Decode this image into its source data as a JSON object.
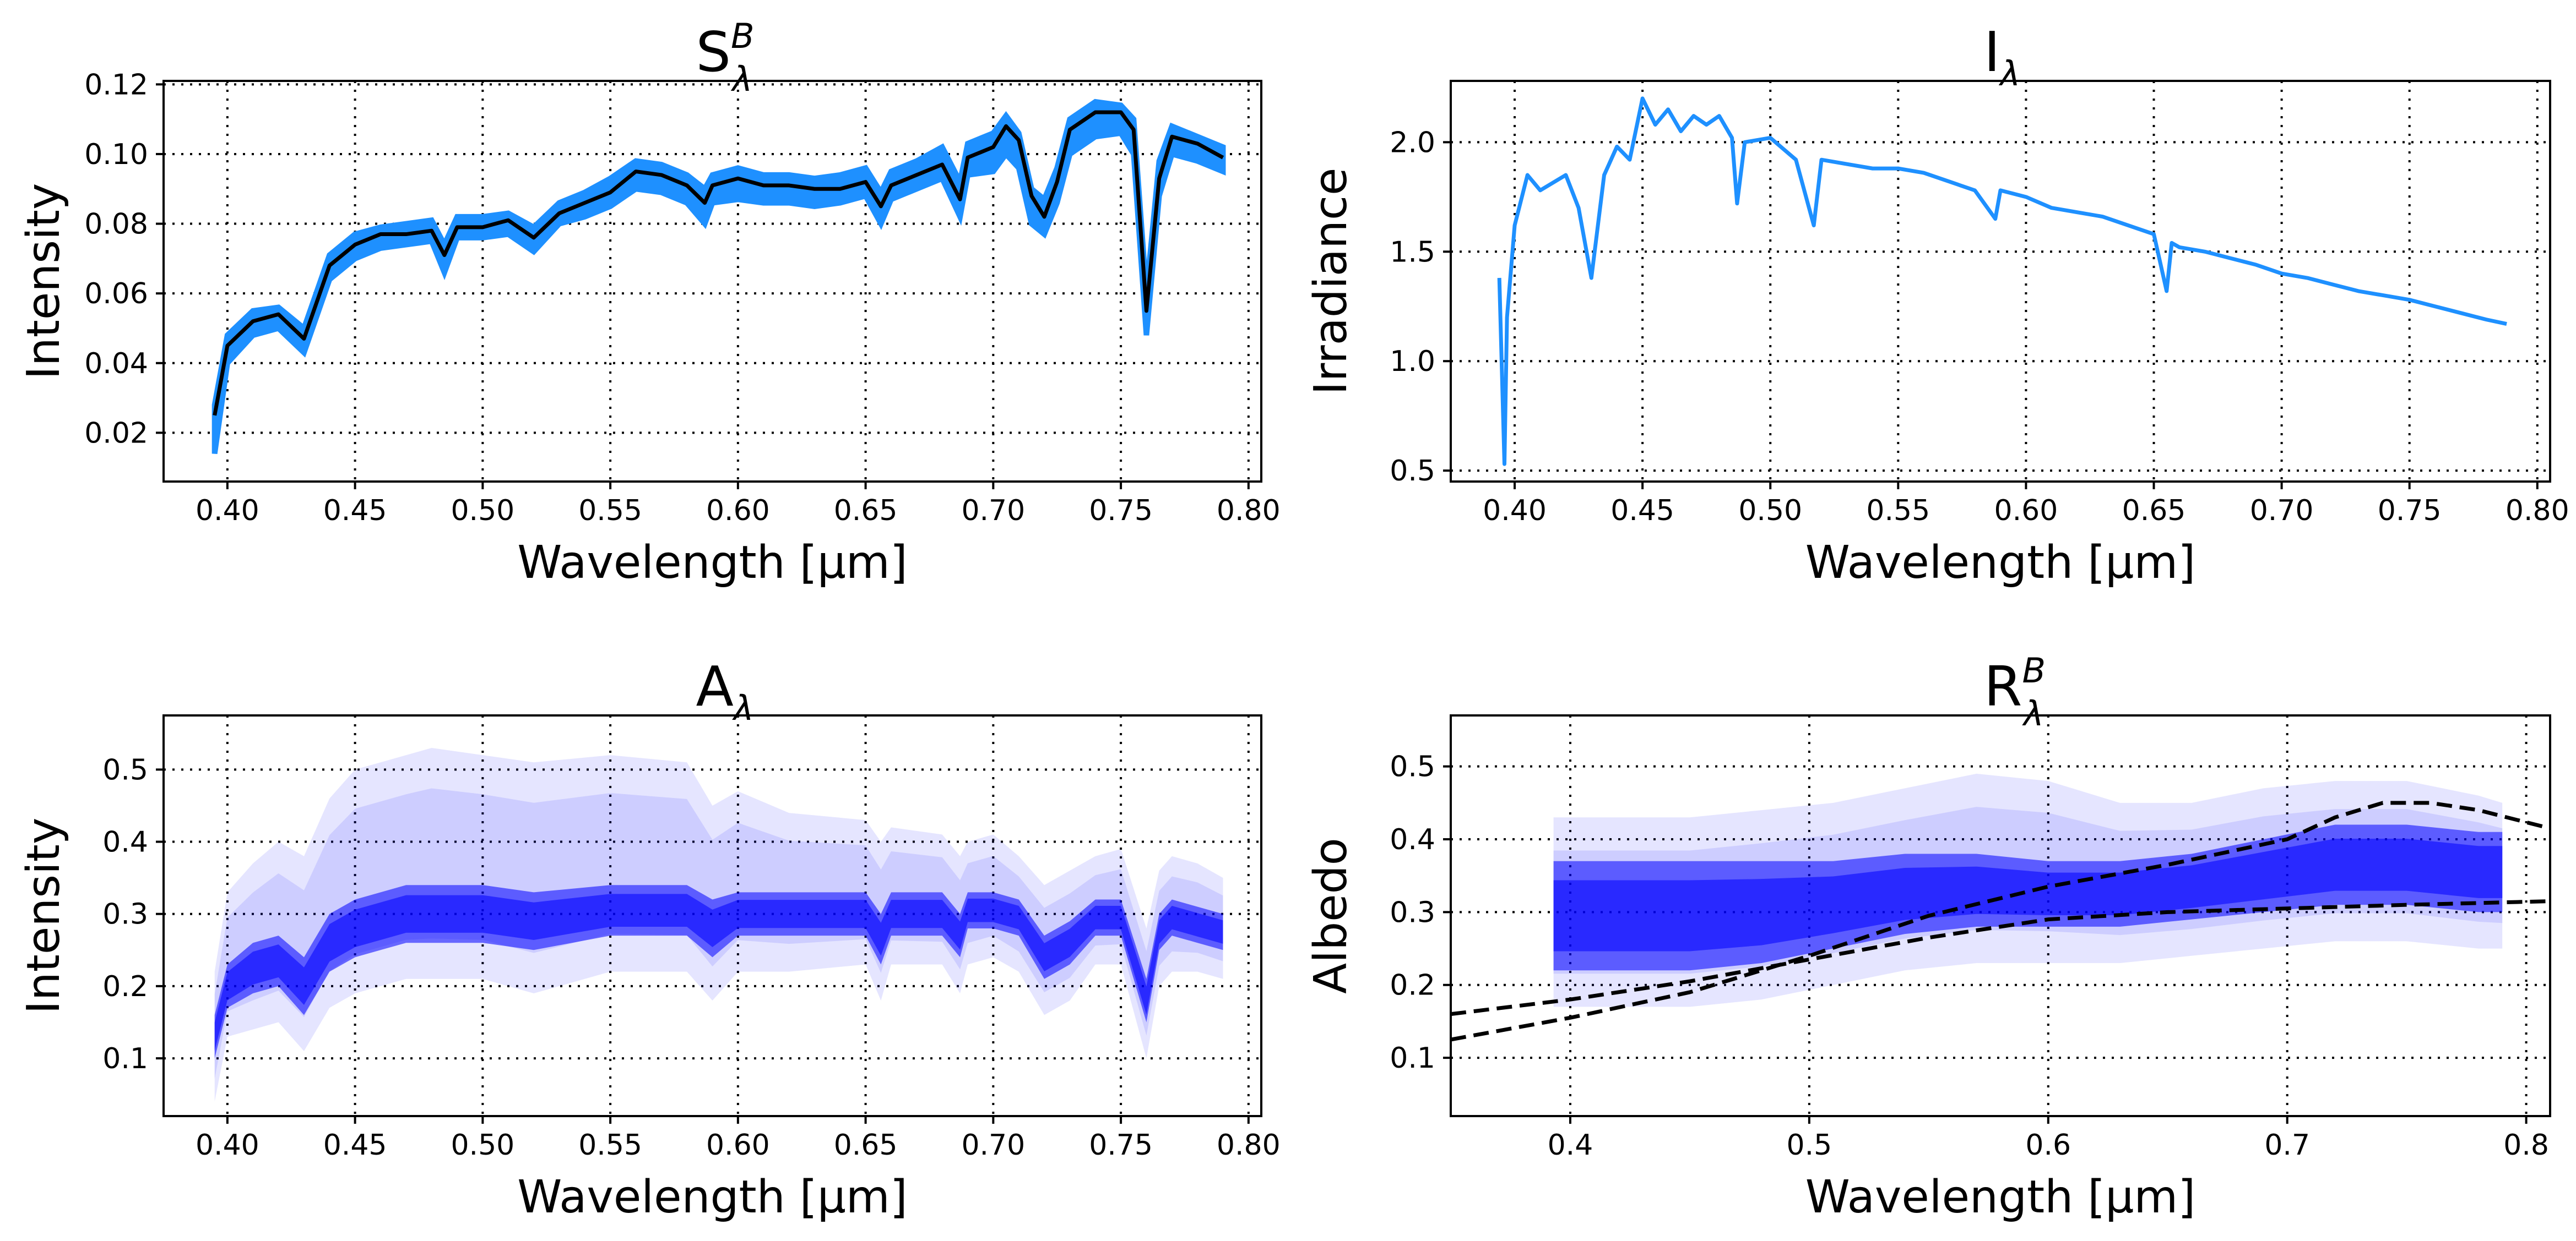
{
  "chart_data": [
    {
      "panel": "top-left",
      "type": "line",
      "title": "S",
      "title_superscript": "B",
      "title_subscript": "λ",
      "xlabel": "Wavelength [μm]",
      "ylabel": "Intensity",
      "xlim": [
        0.375,
        0.805
      ],
      "ylim": [
        0.006,
        0.121
      ],
      "xticks": [
        0.4,
        0.45,
        0.5,
        0.55,
        0.6,
        0.65,
        0.7,
        0.75,
        0.8
      ],
      "xtick_labels": [
        "0.40",
        "0.45",
        "0.50",
        "0.55",
        "0.60",
        "0.65",
        "0.70",
        "0.75",
        "0.80"
      ],
      "yticks": [
        0.02,
        0.04,
        0.06,
        0.08,
        0.1,
        0.12
      ],
      "ytick_labels": [
        "0.02",
        "0.04",
        "0.06",
        "0.08",
        "0.10",
        "0.12"
      ],
      "grid": "dotted",
      "colors": {
        "band": "#1e90ff",
        "line": "#000000"
      },
      "series": [
        {
          "style": "band",
          "x": [
            0.395,
            0.4,
            0.41,
            0.42,
            0.43,
            0.44,
            0.45,
            0.46,
            0.47,
            0.48,
            0.485,
            0.49,
            0.5,
            0.51,
            0.52,
            0.53,
            0.54,
            0.55,
            0.56,
            0.57,
            0.58,
            0.587,
            0.59,
            0.6,
            0.61,
            0.62,
            0.63,
            0.64,
            0.65,
            0.656,
            0.66,
            0.67,
            0.68,
            0.687,
            0.69,
            0.7,
            0.705,
            0.71,
            0.715,
            0.72,
            0.725,
            0.73,
            0.74,
            0.75,
            0.755,
            0.76,
            0.765,
            0.77,
            0.78,
            0.79
          ],
          "y_low": [
            0.014,
            0.04,
            0.048,
            0.05,
            0.043,
            0.064,
            0.07,
            0.073,
            0.074,
            0.075,
            0.066,
            0.076,
            0.076,
            0.077,
            0.072,
            0.08,
            0.082,
            0.085,
            0.09,
            0.089,
            0.086,
            0.08,
            0.086,
            0.087,
            0.086,
            0.086,
            0.085,
            0.086,
            0.088,
            0.08,
            0.087,
            0.09,
            0.093,
            0.082,
            0.094,
            0.095,
            0.1,
            0.096,
            0.08,
            0.077,
            0.086,
            0.1,
            0.105,
            0.106,
            0.1,
            0.048,
            0.088,
            0.1,
            0.098,
            0.095
          ],
          "y_high": [
            0.028,
            0.048,
            0.055,
            0.056,
            0.05,
            0.071,
            0.077,
            0.079,
            0.08,
            0.081,
            0.074,
            0.082,
            0.082,
            0.083,
            0.079,
            0.086,
            0.089,
            0.093,
            0.098,
            0.097,
            0.094,
            0.09,
            0.094,
            0.096,
            0.094,
            0.094,
            0.093,
            0.094,
            0.096,
            0.089,
            0.095,
            0.098,
            0.102,
            0.092,
            0.103,
            0.106,
            0.111,
            0.106,
            0.09,
            0.087,
            0.096,
            0.11,
            0.115,
            0.114,
            0.11,
            0.06,
            0.098,
            0.108,
            0.105,
            0.102
          ]
        },
        {
          "style": "line",
          "x": [
            0.395,
            0.4,
            0.41,
            0.42,
            0.43,
            0.44,
            0.45,
            0.46,
            0.47,
            0.48,
            0.485,
            0.49,
            0.5,
            0.51,
            0.52,
            0.53,
            0.54,
            0.55,
            0.56,
            0.57,
            0.58,
            0.587,
            0.59,
            0.6,
            0.61,
            0.62,
            0.63,
            0.64,
            0.65,
            0.656,
            0.66,
            0.67,
            0.68,
            0.687,
            0.69,
            0.7,
            0.705,
            0.71,
            0.715,
            0.72,
            0.725,
            0.73,
            0.74,
            0.75,
            0.755,
            0.76,
            0.765,
            0.77,
            0.78,
            0.79
          ],
          "y": [
            0.025,
            0.045,
            0.052,
            0.054,
            0.047,
            0.068,
            0.074,
            0.077,
            0.077,
            0.078,
            0.071,
            0.079,
            0.079,
            0.081,
            0.076,
            0.083,
            0.086,
            0.089,
            0.095,
            0.094,
            0.091,
            0.086,
            0.091,
            0.093,
            0.091,
            0.091,
            0.09,
            0.09,
            0.092,
            0.085,
            0.091,
            0.094,
            0.097,
            0.087,
            0.099,
            0.102,
            0.108,
            0.104,
            0.088,
            0.082,
            0.092,
            0.107,
            0.112,
            0.112,
            0.107,
            0.055,
            0.093,
            0.105,
            0.103,
            0.099
          ]
        }
      ]
    },
    {
      "panel": "top-right",
      "type": "line",
      "title": "I",
      "title_subscript": "λ",
      "xlabel": "Wavelength [μm]",
      "ylabel": "Irradiance",
      "xlim": [
        0.375,
        0.805
      ],
      "ylim": [
        0.45,
        2.28
      ],
      "xticks": [
        0.4,
        0.45,
        0.5,
        0.55,
        0.6,
        0.65,
        0.7,
        0.75,
        0.8
      ],
      "xtick_labels": [
        "0.40",
        "0.45",
        "0.50",
        "0.55",
        "0.60",
        "0.65",
        "0.70",
        "0.75",
        "0.80"
      ],
      "yticks": [
        0.5,
        1.0,
        1.5,
        2.0
      ],
      "ytick_labels": [
        "0.5",
        "1.0",
        "1.5",
        "2.0"
      ],
      "grid": "dotted",
      "colors": {
        "line": "#1e90ff"
      },
      "series": [
        {
          "style": "line",
          "x": [
            0.394,
            0.396,
            0.397,
            0.4,
            0.405,
            0.41,
            0.42,
            0.425,
            0.43,
            0.435,
            0.44,
            0.445,
            0.45,
            0.455,
            0.46,
            0.465,
            0.47,
            0.475,
            0.48,
            0.485,
            0.487,
            0.49,
            0.5,
            0.51,
            0.517,
            0.52,
            0.53,
            0.54,
            0.55,
            0.56,
            0.57,
            0.58,
            0.588,
            0.59,
            0.6,
            0.61,
            0.62,
            0.63,
            0.64,
            0.65,
            0.655,
            0.657,
            0.66,
            0.67,
            0.68,
            0.69,
            0.7,
            0.71,
            0.72,
            0.73,
            0.74,
            0.75,
            0.76,
            0.77,
            0.78,
            0.788
          ],
          "y": [
            1.38,
            0.53,
            1.2,
            1.62,
            1.85,
            1.78,
            1.85,
            1.7,
            1.38,
            1.85,
            1.98,
            1.92,
            2.2,
            2.08,
            2.15,
            2.05,
            2.12,
            2.08,
            2.12,
            2.02,
            1.72,
            2.0,
            2.02,
            1.92,
            1.62,
            1.92,
            1.9,
            1.88,
            1.88,
            1.86,
            1.82,
            1.78,
            1.65,
            1.78,
            1.75,
            1.7,
            1.68,
            1.66,
            1.62,
            1.58,
            1.32,
            1.54,
            1.52,
            1.5,
            1.47,
            1.44,
            1.4,
            1.38,
            1.35,
            1.32,
            1.3,
            1.28,
            1.25,
            1.22,
            1.19,
            1.17
          ]
        }
      ]
    },
    {
      "panel": "bottom-left",
      "type": "area",
      "title": "A",
      "title_subscript": "λ",
      "xlabel": "Wavelength [μm]",
      "ylabel": "Intensity",
      "xlim": [
        0.375,
        0.805
      ],
      "ylim": [
        0.02,
        0.575
      ],
      "xticks": [
        0.4,
        0.45,
        0.5,
        0.55,
        0.6,
        0.65,
        0.7,
        0.75,
        0.8
      ],
      "xtick_labels": [
        "0.40",
        "0.45",
        "0.50",
        "0.55",
        "0.60",
        "0.65",
        "0.70",
        "0.75",
        "0.80"
      ],
      "yticks": [
        0.1,
        0.2,
        0.3,
        0.4,
        0.5
      ],
      "ytick_labels": [
        "0.1",
        "0.2",
        "0.3",
        "0.4",
        "0.5"
      ],
      "grid": "dotted",
      "colors": {
        "band": "#0000ff"
      },
      "series": [
        {
          "style": "band-ensemble",
          "x": [
            0.395,
            0.4,
            0.41,
            0.42,
            0.43,
            0.44,
            0.45,
            0.46,
            0.47,
            0.48,
            0.5,
            0.52,
            0.55,
            0.58,
            0.59,
            0.6,
            0.62,
            0.65,
            0.656,
            0.66,
            0.68,
            0.687,
            0.69,
            0.7,
            0.71,
            0.72,
            0.73,
            0.74,
            0.75,
            0.76,
            0.765,
            0.77,
            0.78,
            0.79
          ],
          "y_low": [
            0.04,
            0.13,
            0.14,
            0.15,
            0.11,
            0.17,
            0.19,
            0.2,
            0.21,
            0.21,
            0.21,
            0.19,
            0.22,
            0.22,
            0.18,
            0.22,
            0.22,
            0.23,
            0.18,
            0.23,
            0.23,
            0.19,
            0.23,
            0.24,
            0.22,
            0.16,
            0.18,
            0.23,
            0.23,
            0.1,
            0.2,
            0.22,
            0.22,
            0.21
          ],
          "y_core_low": [
            0.1,
            0.17,
            0.19,
            0.2,
            0.16,
            0.22,
            0.24,
            0.25,
            0.26,
            0.26,
            0.26,
            0.25,
            0.27,
            0.27,
            0.24,
            0.27,
            0.27,
            0.27,
            0.23,
            0.27,
            0.27,
            0.24,
            0.28,
            0.28,
            0.27,
            0.21,
            0.23,
            0.27,
            0.27,
            0.15,
            0.25,
            0.27,
            0.26,
            0.25
          ],
          "y_core_high": [
            0.16,
            0.23,
            0.26,
            0.27,
            0.24,
            0.3,
            0.32,
            0.33,
            0.34,
            0.34,
            0.34,
            0.33,
            0.34,
            0.34,
            0.32,
            0.33,
            0.33,
            0.33,
            0.3,
            0.33,
            0.33,
            0.3,
            0.33,
            0.33,
            0.32,
            0.27,
            0.29,
            0.32,
            0.32,
            0.21,
            0.3,
            0.32,
            0.31,
            0.3
          ],
          "y_high": [
            0.22,
            0.33,
            0.37,
            0.4,
            0.38,
            0.46,
            0.5,
            0.51,
            0.52,
            0.53,
            0.52,
            0.51,
            0.52,
            0.51,
            0.45,
            0.47,
            0.44,
            0.43,
            0.4,
            0.42,
            0.41,
            0.38,
            0.4,
            0.41,
            0.38,
            0.34,
            0.36,
            0.38,
            0.39,
            0.28,
            0.36,
            0.38,
            0.37,
            0.35
          ]
        }
      ]
    },
    {
      "panel": "bottom-right",
      "type": "area",
      "title": "R",
      "title_superscript": "B",
      "title_subscript": "λ",
      "xlabel": "Wavelength [μm]",
      "ylabel": "Albedo",
      "xlim": [
        0.35,
        0.81
      ],
      "ylim": [
        0.02,
        0.57
      ],
      "xticks": [
        0.4,
        0.5,
        0.6,
        0.7,
        0.8
      ],
      "xtick_labels": [
        "0.4",
        "0.5",
        "0.6",
        "0.7",
        "0.8"
      ],
      "yticks": [
        0.1,
        0.2,
        0.3,
        0.4,
        0.5
      ],
      "ytick_labels": [
        "0.1",
        "0.2",
        "0.3",
        "0.4",
        "0.5"
      ],
      "grid": "dotted",
      "colors": {
        "band": "#0000ff",
        "dashed": "#000000"
      },
      "series": [
        {
          "style": "band-ensemble",
          "x": [
            0.393,
            0.42,
            0.45,
            0.48,
            0.51,
            0.54,
            0.57,
            0.6,
            0.63,
            0.66,
            0.69,
            0.72,
            0.75,
            0.78,
            0.79
          ],
          "y_low": [
            0.17,
            0.17,
            0.17,
            0.18,
            0.2,
            0.22,
            0.23,
            0.23,
            0.23,
            0.24,
            0.25,
            0.26,
            0.26,
            0.25,
            0.25
          ],
          "y_core_low": [
            0.22,
            0.22,
            0.22,
            0.23,
            0.25,
            0.27,
            0.28,
            0.28,
            0.28,
            0.29,
            0.3,
            0.31,
            0.31,
            0.3,
            0.3
          ],
          "y_core_high": [
            0.37,
            0.37,
            0.37,
            0.37,
            0.37,
            0.38,
            0.38,
            0.37,
            0.37,
            0.38,
            0.4,
            0.42,
            0.42,
            0.41,
            0.41
          ],
          "y_high": [
            0.43,
            0.43,
            0.43,
            0.44,
            0.45,
            0.47,
            0.49,
            0.48,
            0.45,
            0.45,
            0.47,
            0.48,
            0.48,
            0.46,
            0.45
          ]
        },
        {
          "style": "dashed",
          "x": [
            0.35,
            0.4,
            0.45,
            0.5,
            0.55,
            0.58,
            0.6,
            0.65,
            0.7,
            0.75,
            0.81
          ],
          "y": [
            0.16,
            0.18,
            0.205,
            0.235,
            0.265,
            0.28,
            0.29,
            0.3,
            0.305,
            0.31,
            0.315
          ]
        },
        {
          "style": "dashed",
          "x": [
            0.35,
            0.4,
            0.45,
            0.5,
            0.55,
            0.6,
            0.65,
            0.7,
            0.72,
            0.74,
            0.76,
            0.78,
            0.81
          ],
          "y": [
            0.125,
            0.155,
            0.19,
            0.24,
            0.295,
            0.335,
            0.365,
            0.4,
            0.43,
            0.45,
            0.45,
            0.44,
            0.415
          ]
        }
      ]
    }
  ]
}
